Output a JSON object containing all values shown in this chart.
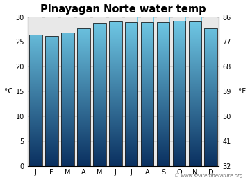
{
  "title": "Pinayagan Norte water temp",
  "months": [
    "J",
    "F",
    "M",
    "A",
    "M",
    "J",
    "J",
    "A",
    "S",
    "O",
    "N",
    "D"
  ],
  "values_c": [
    26.5,
    26.2,
    26.8,
    27.7,
    28.8,
    29.1,
    29.0,
    28.9,
    28.9,
    29.2,
    29.1,
    27.7
  ],
  "ylim_c": [
    0,
    30
  ],
  "yticks_c": [
    0,
    5,
    10,
    15,
    20,
    25,
    30
  ],
  "yticks_f": [
    32,
    41,
    50,
    59,
    68,
    77,
    86
  ],
  "ylabel_left": "°C",
  "ylabel_right": "°F",
  "bar_color_top": "#72cce8",
  "bar_color_bottom": "#0a3060",
  "bar_edge_color": "#222222",
  "bg_color": "#ffffff",
  "plot_bg_color": "#e8e8e8",
  "grid_color": "#cccccc",
  "watermark": "© www.seatemperature.org",
  "title_fontsize": 10.5,
  "tick_fontsize": 7,
  "label_fontsize": 7.5
}
